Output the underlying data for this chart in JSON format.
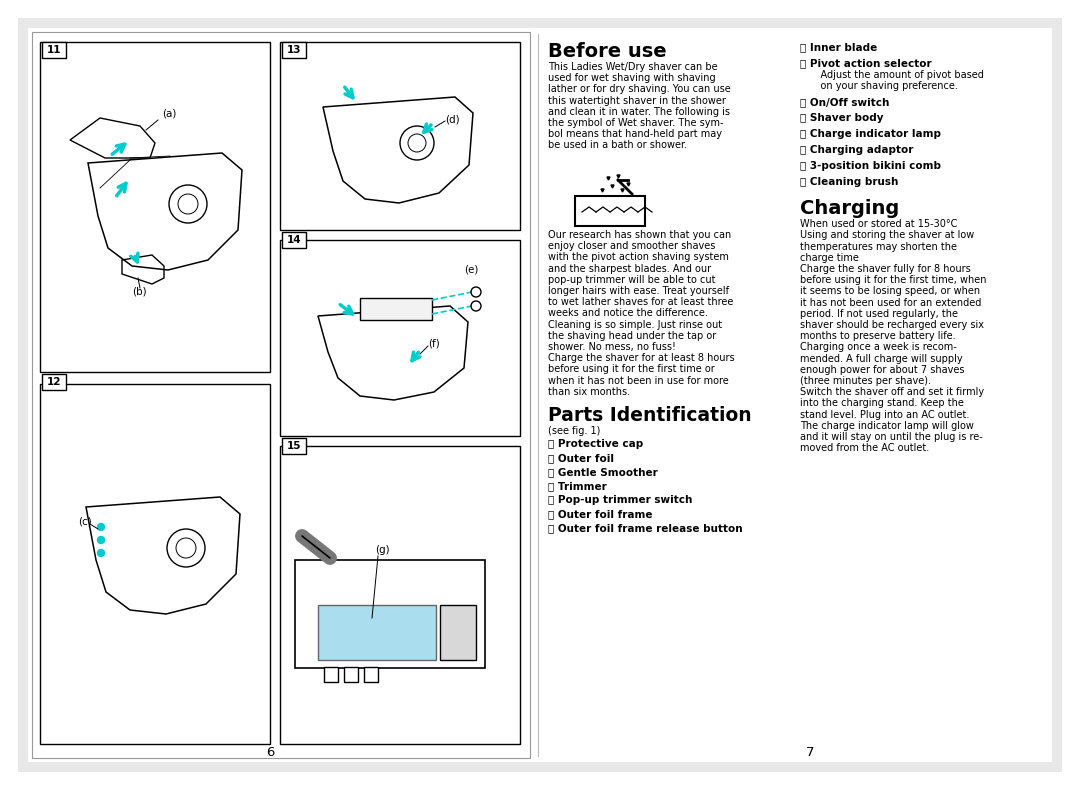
{
  "bg_color": "#ffffff",
  "cyan": "#00cccc",
  "light_blue": "#aaddee",
  "page_num_left": "6",
  "page_num_right": "7",
  "before_use_title": "Before use",
  "before_use_p1_lines": [
    "This Ladies Wet/Dry shaver can be",
    "used for wet shaving with shaving",
    "lather or for dry shaving. You can use",
    "this watertight shaver in the shower",
    "and clean it in water. The following is",
    "the symbol of Wet shaver. The sym-",
    "bol means that hand-held part may",
    "be used in a bath or shower."
  ],
  "before_use_p2_lines": [
    "Our research has shown that you can",
    "enjoy closer and smoother shaves",
    "with the pivot action shaving system",
    "and the sharpest blades. And our",
    "pop-up trimmer will be able to cut",
    "longer hairs with ease. Treat yourself",
    "to wet lather shaves for at least three",
    "weeks and notice the difference.",
    "Cleaning is so simple. Just rinse out",
    "the shaving head under the tap or",
    "shower. No mess, no fuss!",
    "Charge the shaver for at least 8 hours",
    "before using it for the first time or",
    "when it has not been in use for more",
    "than six months."
  ],
  "parts_title": "Parts Identification",
  "parts_sub": "(see fig. 1)",
  "parts_A": "Ⓐ Protective cap",
  "parts_B": "Ⓑ Outer foil",
  "parts_C": "Ⓒ Gentle Smoother",
  "parts_D": "Ⓓ Trimmer",
  "parts_E": "Ⓔ Pop-up trimmer switch",
  "parts_F": "Ⓕ Outer foil frame",
  "parts_G": "Ⓖ Outer foil frame release button",
  "right_H": "Ⓗ Inner blade",
  "right_I": "Ⓘ Pivot action selector",
  "right_I_sub1": "    Adjust the amount of pivot based",
  "right_I_sub2": "    on your shaving preference.",
  "right_J": "Ⓙ On/Off switch",
  "right_K": "Ⓚ Shaver body",
  "right_L": "Ⓛ Charge indicator lamp",
  "right_M": "Ⓜ Charging adaptor",
  "right_N": "Ⓝ 3-position bikini comb",
  "right_O": "Ⓞ Cleaning brush",
  "charging_title": "Charging",
  "charging_lines": [
    "When used or stored at 15-30°C",
    "Using and storing the shaver at low",
    "themperatures may shorten the",
    "charge time",
    "Charge the shaver fully for 8 hours",
    "before using it for the first time, when",
    "it seems to be losing speed, or when",
    "it has not been used for an extended",
    "period. If not used regularly, the",
    "shaver should be recharged every six",
    "months to preserve battery life.",
    "Charging once a week is recom-",
    "mended. A full charge will supply",
    "enough power for about 7 shaves",
    "(three minutes per shave).",
    "Switch the shaver off and set it firmly",
    "into the charging stand. Keep the",
    "stand level. Plug into an AC outlet.",
    "The charge indicator lamp will glow",
    "and it will stay on until the plug is re-",
    "moved from the AC outlet."
  ]
}
